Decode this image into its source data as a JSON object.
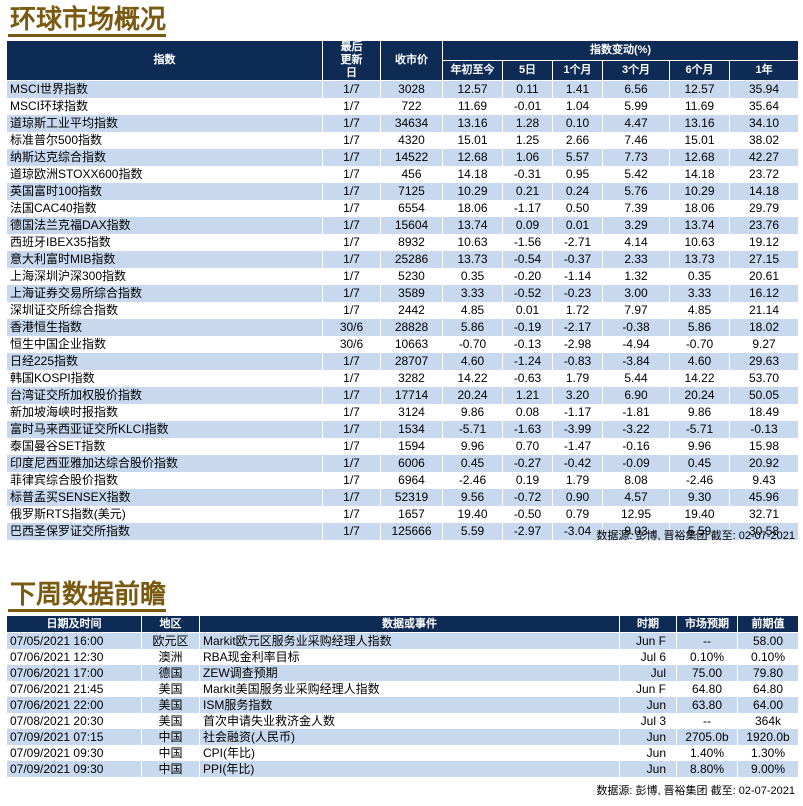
{
  "market": {
    "title": "环球市场概况",
    "headers": {
      "index": "指数",
      "last_update": "最后更新日",
      "close": "收市价",
      "change": "指数变动(%)",
      "periods": [
        "年初至今",
        "5日",
        "1个月",
        "3个月",
        "6个月",
        "1年"
      ]
    },
    "rows": [
      [
        "MSCI世界指数",
        "1/7",
        "3028",
        "12.57",
        "0.11",
        "1.41",
        "6.56",
        "12.57",
        "35.94"
      ],
      [
        "MSCI环球指数",
        "1/7",
        "722",
        "11.69",
        "-0.01",
        "1.04",
        "5.99",
        "11.69",
        "35.64"
      ],
      [
        "道琼斯工业平均指数",
        "1/7",
        "34634",
        "13.16",
        "1.28",
        "0.10",
        "4.47",
        "13.16",
        "34.10"
      ],
      [
        "标准普尔500指数",
        "1/7",
        "4320",
        "15.01",
        "1.25",
        "2.66",
        "7.46",
        "15.01",
        "38.02"
      ],
      [
        "纳斯达克综合指数",
        "1/7",
        "14522",
        "12.68",
        "1.06",
        "5.57",
        "7.73",
        "12.68",
        "42.27"
      ],
      [
        "道琼欧洲STOXX600指数",
        "1/7",
        "456",
        "14.18",
        "-0.31",
        "0.95",
        "5.42",
        "14.18",
        "23.72"
      ],
      [
        "英国富时100指数",
        "1/7",
        "7125",
        "10.29",
        "0.21",
        "0.24",
        "5.76",
        "10.29",
        "14.18"
      ],
      [
        "法国CAC40指数",
        "1/7",
        "6554",
        "18.06",
        "-1.17",
        "0.50",
        "7.39",
        "18.06",
        "29.79"
      ],
      [
        "德国法兰克福DAX指数",
        "1/7",
        "15604",
        "13.74",
        "0.09",
        "0.01",
        "3.29",
        "13.74",
        "23.76"
      ],
      [
        "西班牙IBEX35指数",
        "1/7",
        "8932",
        "10.63",
        "-1.56",
        "-2.71",
        "4.14",
        "10.63",
        "19.12"
      ],
      [
        "意大利富时MIB指数",
        "1/7",
        "25286",
        "13.73",
        "-0.54",
        "-0.37",
        "2.33",
        "13.73",
        "27.15"
      ],
      [
        "上海深圳沪深300指数",
        "1/7",
        "5230",
        "0.35",
        "-0.20",
        "-1.14",
        "1.32",
        "0.35",
        "20.61"
      ],
      [
        "上海证券交易所综合指数",
        "1/7",
        "3589",
        "3.33",
        "-0.52",
        "-0.23",
        "3.00",
        "3.33",
        "16.12"
      ],
      [
        "深圳证交所综合指数",
        "1/7",
        "2442",
        "4.85",
        "0.01",
        "1.72",
        "7.97",
        "4.85",
        "21.14"
      ],
      [
        "香港恒生指数",
        "30/6",
        "28828",
        "5.86",
        "-0.19",
        "-2.17",
        "-0.38",
        "5.86",
        "18.02"
      ],
      [
        "恒生中国企业指数",
        "30/6",
        "10663",
        "-0.70",
        "-0.13",
        "-2.98",
        "-4.94",
        "-0.70",
        "9.27"
      ],
      [
        "日经225指数",
        "1/7",
        "28707",
        "4.60",
        "-1.24",
        "-0.83",
        "-3.84",
        "4.60",
        "29.63"
      ],
      [
        "韩国KOSPI指数",
        "1/7",
        "3282",
        "14.22",
        "-0.63",
        "1.79",
        "5.44",
        "14.22",
        "53.70"
      ],
      [
        "台湾证交所加权股价指数",
        "1/7",
        "17714",
        "20.24",
        "1.21",
        "3.20",
        "6.90",
        "20.24",
        "50.05"
      ],
      [
        "新加坡海峡时报指数",
        "1/7",
        "3124",
        "9.86",
        "0.08",
        "-1.17",
        "-1.81",
        "9.86",
        "18.49"
      ],
      [
        "富时马来西亚证交所KLCI指数",
        "1/7",
        "1534",
        "-5.71",
        "-1.63",
        "-3.99",
        "-3.22",
        "-5.71",
        "-0.13"
      ],
      [
        "泰国曼谷SET指数",
        "1/7",
        "1594",
        "9.96",
        "0.70",
        "-1.47",
        "-0.16",
        "9.96",
        "15.98"
      ],
      [
        "印度尼西亚雅加达综合股价指数",
        "1/7",
        "6006",
        "0.45",
        "-0.27",
        "-0.42",
        "-0.09",
        "0.45",
        "20.92"
      ],
      [
        "菲律宾综合股价指数",
        "1/7",
        "6964",
        "-2.46",
        "0.19",
        "1.79",
        "8.08",
        "-2.46",
        "9.43"
      ],
      [
        "标普孟买SENSEX指数",
        "1/7",
        "52319",
        "9.56",
        "-0.72",
        "0.90",
        "4.57",
        "9.30",
        "45.96"
      ],
      [
        "俄罗斯RTS指数(美元)",
        "1/7",
        "1657",
        "19.40",
        "-0.50",
        "0.79",
        "12.95",
        "19.40",
        "32.71"
      ],
      [
        "巴西圣保罗证交所指数",
        "1/7",
        "125666",
        "5.59",
        "-2.97",
        "-3.04",
        "9.03",
        "5.59",
        "30.58"
      ]
    ],
    "source": "数据源: 彭博, 晋裕集团 截至: 02-07-2021"
  },
  "weekly": {
    "title": "下周数据前瞻",
    "headers": [
      "日期及时间",
      "地区",
      "数据或事件",
      "时期",
      "市场预期",
      "前期值"
    ],
    "rows": [
      [
        "07/05/2021 16:00",
        "欧元区",
        "Markit欧元区服务业采购经理人指数",
        "Jun F",
        "--",
        "58.00"
      ],
      [
        "07/06/2021 12:30",
        "澳洲",
        "RBA现金利率目标",
        "Jul 6",
        "0.10%",
        "0.10%"
      ],
      [
        "07/06/2021 17:00",
        "德国",
        "ZEW调查预期",
        "Jul",
        "75.00",
        "79.80"
      ],
      [
        "07/06/2021 21:45",
        "美国",
        "Markit美国服务业采购经理人指数",
        "Jun F",
        "64.80",
        "64.80"
      ],
      [
        "07/06/2021 22:00",
        "美国",
        "ISM服务指数",
        "Jun",
        "63.80",
        "64.00"
      ],
      [
        "07/08/2021 20:30",
        "美国",
        "首次申请失业救济金人数",
        "Jul 3",
        "--",
        "364k"
      ],
      [
        "07/09/2021 07:15",
        "中国",
        "社会融资(人民币)",
        "Jun",
        "2705.0b",
        "1920.0b"
      ],
      [
        "07/09/2021 09:30",
        "中国",
        "CPI(年比)",
        "Jun",
        "1.40%",
        "1.30%"
      ],
      [
        "07/09/2021 09:30",
        "中国",
        "PPI(年比)",
        "Jun",
        "8.80%",
        "9.00%"
      ]
    ],
    "source": "数据源: 彭博, 晋裕集团 截至: 02-07-2021"
  }
}
